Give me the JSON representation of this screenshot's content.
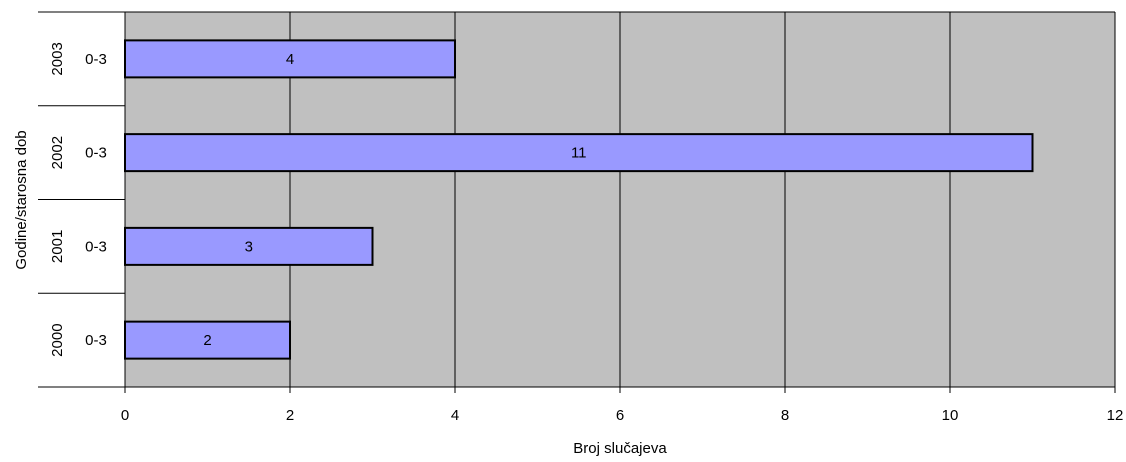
{
  "chart_data": {
    "type": "bar",
    "orientation": "horizontal",
    "title": "",
    "xlabel": "Broj slučajeva",
    "ylabel": "Godine/starosna dob",
    "xlim": [
      0,
      12
    ],
    "x_ticks": [
      "0",
      "2",
      "4",
      "6",
      "8",
      "10",
      "12"
    ],
    "grid": true,
    "categories": [
      {
        "year": "2003",
        "age": "0-3",
        "value": 4
      },
      {
        "year": "2002",
        "age": "0-3",
        "value": 11
      },
      {
        "year": "2001",
        "age": "0-3",
        "value": 3
      },
      {
        "year": "2000",
        "age": "0-3",
        "value": 2
      }
    ],
    "colors": {
      "plot_background": "#c0c0c0",
      "bar_fill": "#9999ff",
      "bar_stroke": "#000000",
      "grid": "#000000"
    }
  }
}
